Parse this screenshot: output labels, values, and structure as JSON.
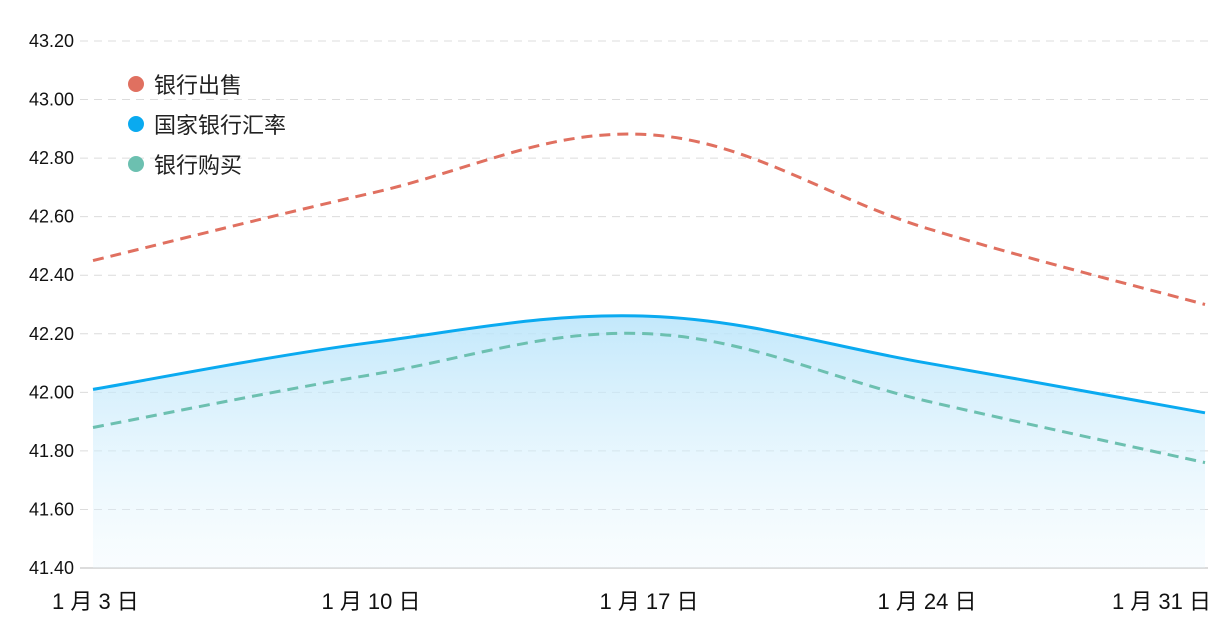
{
  "chart_data": {
    "type": "line",
    "x": [
      "1 月 3 日",
      "1 月 10 日",
      "1 月 17 日",
      "1 月 24 日",
      "1 月 31 日"
    ],
    "x_positions_days": [
      0,
      7,
      14,
      21,
      28
    ],
    "ylim": [
      41.4,
      43.2
    ],
    "yticks": [
      "43.20",
      "43.00",
      "42.80",
      "42.60",
      "42.40",
      "42.20",
      "42.00",
      "41.80",
      "41.60",
      "41.40"
    ],
    "grid": true,
    "legend_position": "top-left",
    "series": [
      {
        "name": "银行出售",
        "color": "#E07060",
        "style": "dashed",
        "points": [
          [
            0,
            42.45
          ],
          [
            7,
            42.68
          ],
          [
            14,
            42.88
          ],
          [
            21,
            42.56
          ],
          [
            28,
            42.3
          ]
        ]
      },
      {
        "name": "国家银行汇率",
        "color": "#0AAAF0",
        "style": "solid-area",
        "points": [
          [
            0,
            42.01
          ],
          [
            7,
            42.17
          ],
          [
            14,
            42.26
          ],
          [
            21,
            42.1
          ],
          [
            28,
            41.93
          ]
        ]
      },
      {
        "name": "银行购买",
        "color": "#6CC0B0",
        "style": "dashed",
        "points": [
          [
            0,
            41.88
          ],
          [
            7,
            42.06
          ],
          [
            14,
            42.2
          ],
          [
            21,
            41.97
          ],
          [
            28,
            41.76
          ]
        ]
      }
    ]
  },
  "legend": {
    "items": [
      {
        "label": "银行出售",
        "color": "#E07060"
      },
      {
        "label": "国家银行汇率",
        "color": "#0AAAF0"
      },
      {
        "label": "银行购买",
        "color": "#6CC0B0"
      }
    ]
  }
}
